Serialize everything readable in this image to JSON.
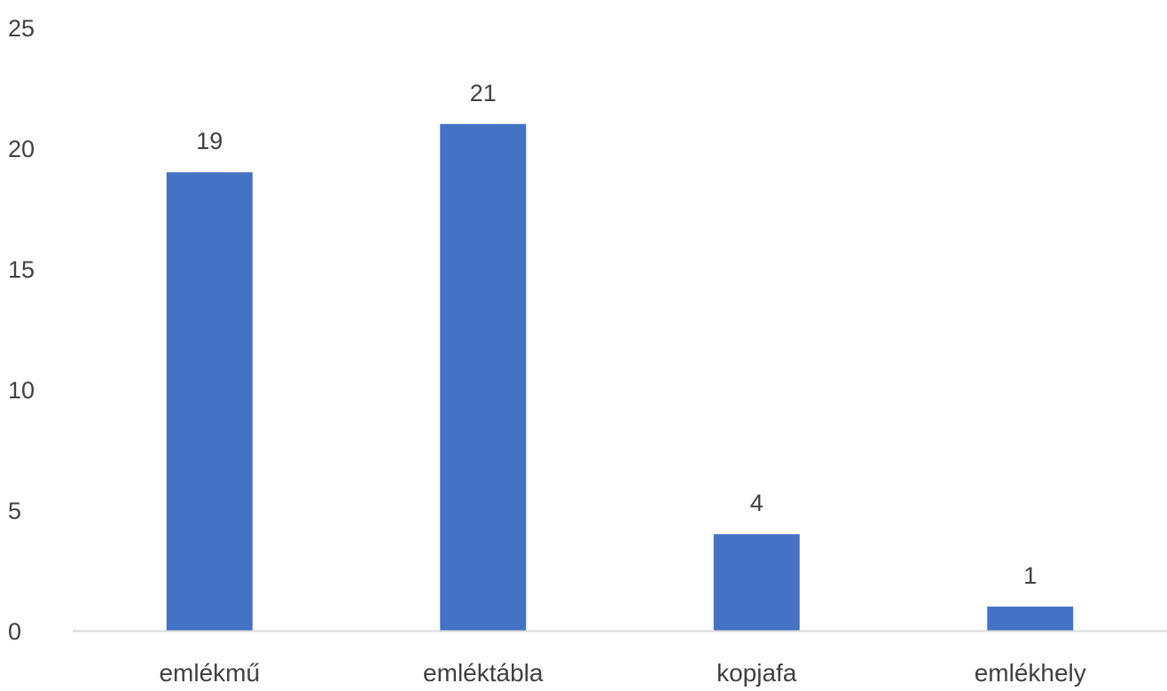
{
  "chart_data": {
    "type": "bar",
    "categories": [
      "emlékmű",
      "emléktábla",
      "kopjafa",
      "emlékhely"
    ],
    "values": [
      19,
      21,
      4,
      1
    ],
    "data_labels": [
      "19",
      "21",
      "4",
      "1"
    ],
    "yticks": [
      "0",
      "5",
      "10",
      "15",
      "20",
      "25"
    ],
    "ylim": [
      0,
      25
    ],
    "grid": false,
    "legend": "none",
    "title": "",
    "xlabel": "",
    "ylabel": ""
  },
  "colors": {
    "bar": "#4472C4",
    "axis": "#D9D9D9",
    "text": "#404040"
  }
}
